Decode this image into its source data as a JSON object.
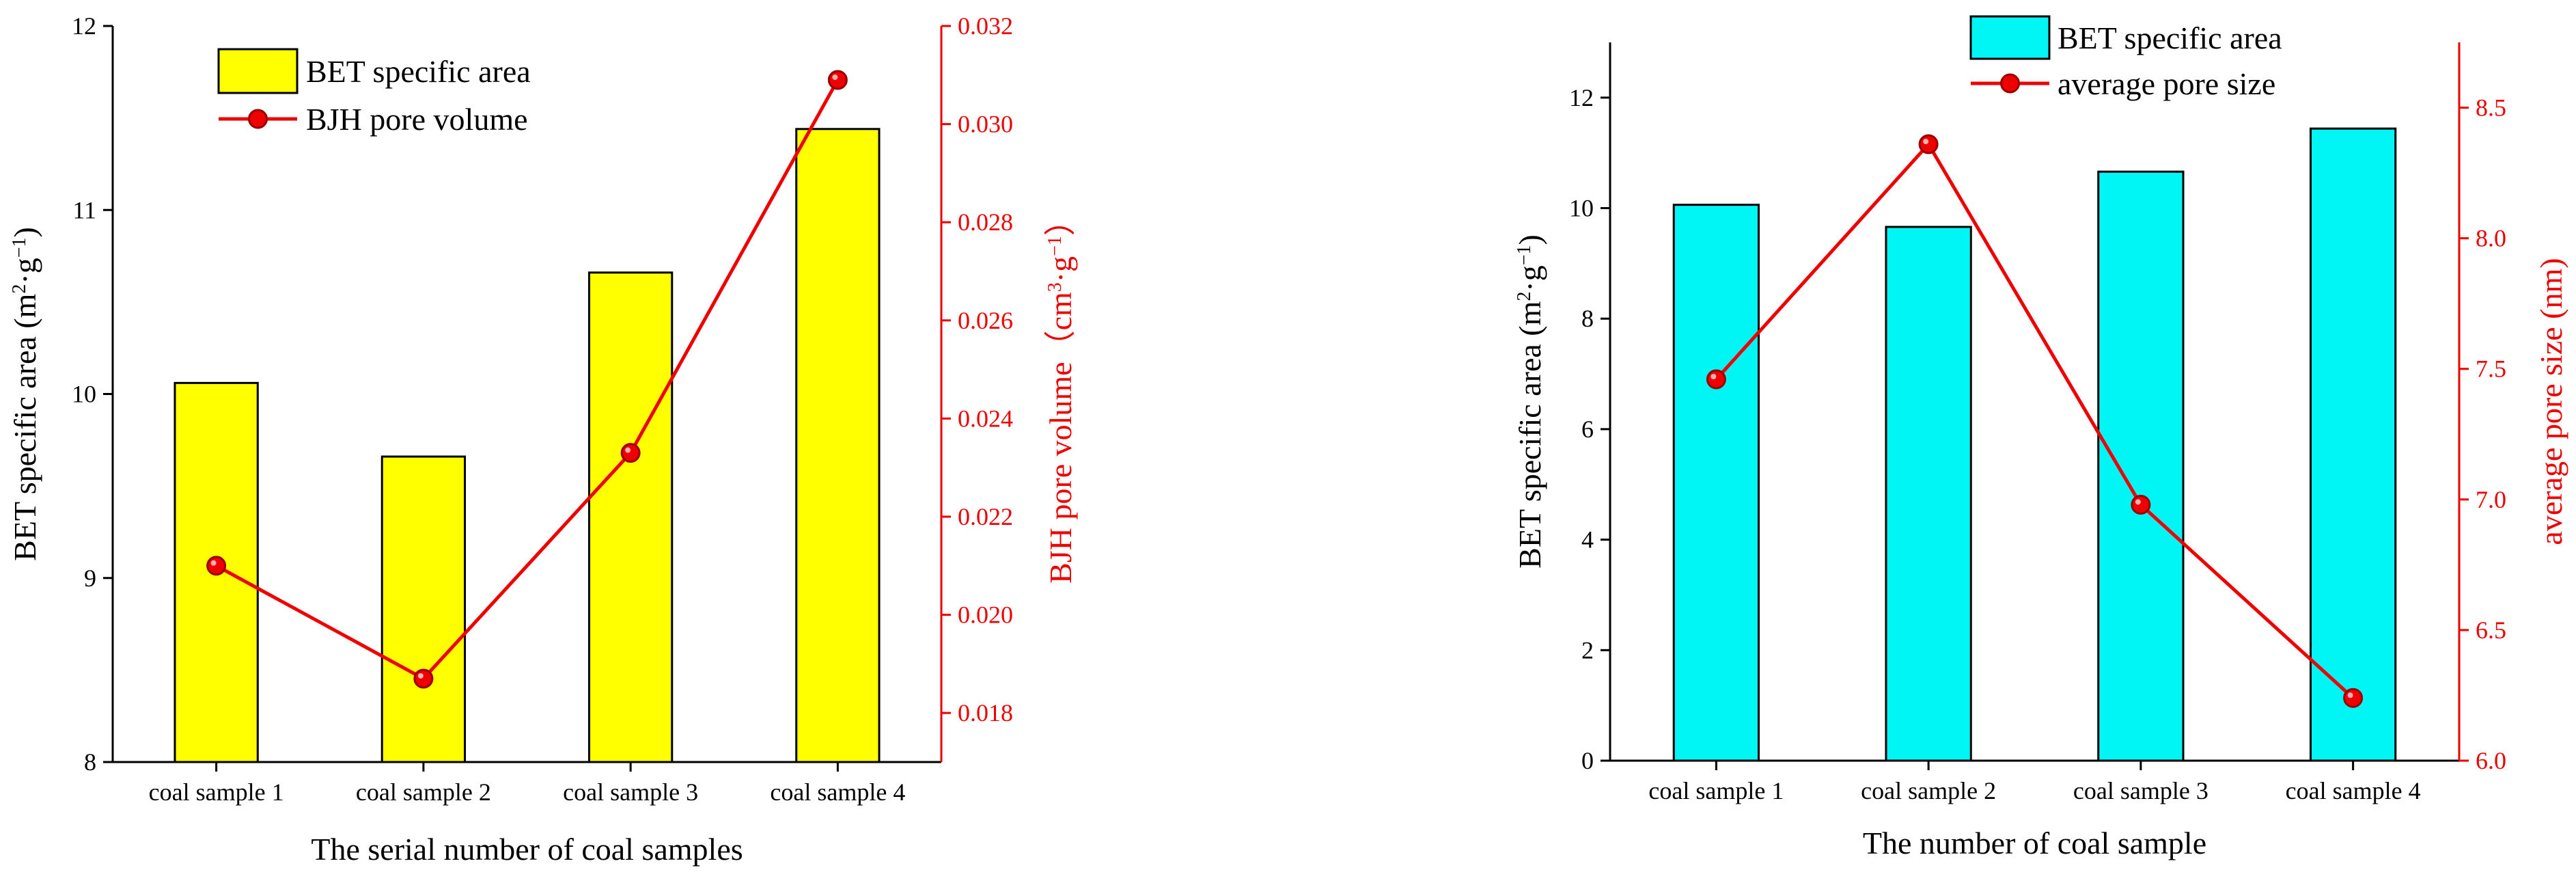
{
  "chart_data": [
    {
      "type": "bar+line",
      "xlabel": "The serial number of coal samples",
      "categories": [
        "coal sample 1",
        "coal sample 2",
        "coal sample 3",
        "coal sample 4"
      ],
      "bar_series": {
        "name": "BET specific area",
        "values": [
          10.06,
          9.66,
          10.66,
          11.44
        ],
        "color": "#ffff00",
        "axis": {
          "label": "BET specific area (m²·g⁻¹)",
          "label_parts": [
            "BET specific area (m",
            "2",
            "·g",
            "−1",
            ")"
          ],
          "ylim": [
            8,
            12
          ],
          "ticks": [
            8,
            9,
            10,
            11,
            12
          ],
          "tick_labels": [
            "8",
            "9",
            "10",
            "11",
            "12"
          ],
          "color": "#000000"
        }
      },
      "line_series": {
        "name": "BJH pore volume",
        "values": [
          0.021,
          0.0187,
          0.0233,
          0.0309
        ],
        "color": "#ee0000",
        "axis": {
          "label": "BJH pore volume（cm³·g⁻¹）",
          "label_parts": [
            "BJH pore volume（cm",
            "3",
            "·g",
            "−1",
            "）"
          ],
          "ylim": [
            0.017,
            0.032
          ],
          "ticks": [
            0.018,
            0.02,
            0.022,
            0.024,
            0.026,
            0.028,
            0.03,
            0.032
          ],
          "tick_labels": [
            "0.018",
            "0.020",
            "0.022",
            "0.024",
            "0.026",
            "0.028",
            "0.030",
            "0.032"
          ],
          "color": "#ee0000"
        }
      },
      "legend": {
        "position": "top-left",
        "items": [
          "BET specific area",
          "BJH pore volume"
        ]
      }
    },
    {
      "type": "bar+line",
      "xlabel": "The number of coal sample",
      "categories": [
        "coal sample 1",
        "coal sample 2",
        "coal sample 3",
        "coal sample 4"
      ],
      "bar_series": {
        "name": "BET specific area",
        "values": [
          10.06,
          9.66,
          10.66,
          11.44
        ],
        "color": "#00f5f5",
        "axis": {
          "label": "BET specific area (m²·g⁻¹)",
          "label_parts": [
            "BET specific area (m",
            "2",
            "·g",
            "−1",
            ")"
          ],
          "ylim": [
            0,
            13
          ],
          "ticks": [
            0,
            2,
            4,
            6,
            8,
            10,
            12
          ],
          "tick_labels": [
            "0",
            "2",
            "4",
            "6",
            "8",
            "10",
            "12"
          ],
          "color": "#000000"
        }
      },
      "line_series": {
        "name": "average pore size",
        "values": [
          7.46,
          8.36,
          6.98,
          6.24
        ],
        "color": "#ee0000",
        "axis": {
          "label": "average pore size (nm)",
          "label_parts": [
            "average pore size (nm)",
            "",
            "",
            "",
            ""
          ],
          "ylim": [
            6.0,
            8.75
          ],
          "ticks": [
            6.0,
            6.5,
            7.0,
            7.5,
            8.0,
            8.5
          ],
          "tick_labels": [
            "6.0",
            "6.5",
            "7.0",
            "7.5",
            "8.0",
            "8.5"
          ],
          "color": "#ee0000"
        }
      },
      "legend": {
        "position": "top-left",
        "items": [
          "BET specific area",
          "average pore size"
        ]
      }
    }
  ]
}
